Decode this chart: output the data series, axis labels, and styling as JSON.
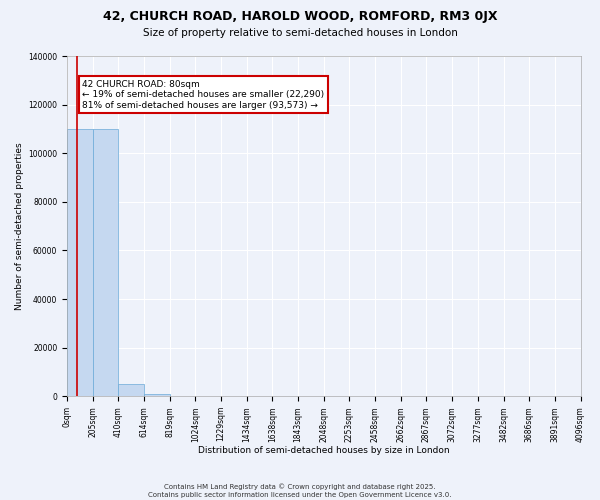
{
  "title": "42, CHURCH ROAD, HAROLD WOOD, ROMFORD, RM3 0JX",
  "subtitle": "Size of property relative to semi-detached houses in London",
  "xlabel": "Distribution of semi-detached houses by size in London",
  "ylabel": "Number of semi-detached properties",
  "property_size": 80,
  "property_label": "42 CHURCH ROAD: 80sqm",
  "pct_smaller": 19,
  "pct_larger": 81,
  "n_smaller": 22290,
  "n_larger": 93573,
  "bar_color": "#c5d8f0",
  "bar_edge_color": "#6baad8",
  "annotation_box_color": "#cc0000",
  "vline_color": "#cc0000",
  "bin_edges": [
    0,
    205,
    410,
    614,
    819,
    1024,
    1229,
    1434,
    1638,
    1843,
    2048,
    2253,
    2458,
    2662,
    2867,
    3072,
    3277,
    3482,
    3686,
    3891,
    4096
  ],
  "bin_heights": [
    110000,
    110000,
    5000,
    800,
    300,
    150,
    80,
    50,
    30,
    20,
    15,
    10,
    8,
    6,
    5,
    4,
    3,
    2,
    2,
    1
  ],
  "ylim": [
    0,
    140000
  ],
  "yticks": [
    0,
    20000,
    40000,
    60000,
    80000,
    100000,
    120000,
    140000
  ],
  "footer": "Contains HM Land Registry data © Crown copyright and database right 2025.\nContains public sector information licensed under the Open Government Licence v3.0.",
  "bg_color": "#eef2fa",
  "grid_color": "#ffffff",
  "title_fontsize": 9,
  "subtitle_fontsize": 7.5,
  "axis_label_fontsize": 6.5,
  "tick_fontsize": 5.5,
  "annotation_fontsize": 6.5,
  "footer_fontsize": 5
}
